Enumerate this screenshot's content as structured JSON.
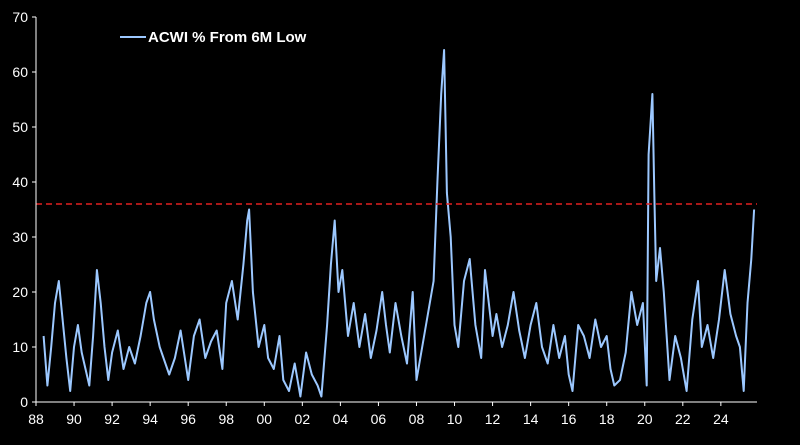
{
  "chart_data": {
    "type": "line",
    "title": "",
    "xlabel": "",
    "ylabel": "",
    "xlim": [
      1988,
      2025.9
    ],
    "ylim": [
      0,
      70
    ],
    "grid": false,
    "legend": {
      "placement": "top-left",
      "entries": [
        "ACWI % From 6M Low"
      ]
    },
    "x_ticks": [
      "88",
      "90",
      "92",
      "94",
      "96",
      "98",
      "00",
      "02",
      "04",
      "06",
      "08",
      "10",
      "12",
      "14",
      "16",
      "18",
      "20",
      "22",
      "24"
    ],
    "y_ticks": [
      "0",
      "10",
      "20",
      "30",
      "40",
      "50",
      "60",
      "70"
    ],
    "reference_line": {
      "y": 36,
      "style": "dashed",
      "color": "#e02020"
    },
    "series": [
      {
        "name": "ACWI % From 6M Low",
        "color": "#9cc8ff",
        "x": [
          1988.4,
          1988.6,
          1988.8,
          1989.0,
          1989.2,
          1989.4,
          1989.6,
          1989.8,
          1990.0,
          1990.2,
          1990.4,
          1990.6,
          1990.8,
          1991.0,
          1991.2,
          1991.4,
          1991.6,
          1991.8,
          1992.0,
          1992.3,
          1992.6,
          1992.9,
          1993.2,
          1993.5,
          1993.8,
          1994.0,
          1994.2,
          1994.5,
          1994.8,
          1995.0,
          1995.3,
          1995.6,
          1996.0,
          1996.3,
          1996.6,
          1996.9,
          1997.2,
          1997.5,
          1997.8,
          1998.0,
          1998.3,
          1998.6,
          1998.9,
          1999.1,
          1999.2,
          1999.4,
          1999.7,
          2000.0,
          2000.2,
          2000.5,
          2000.8,
          2001.0,
          2001.3,
          2001.6,
          2001.9,
          2002.2,
          2002.5,
          2002.8,
          2003.0,
          2003.3,
          2003.5,
          2003.7,
          2003.9,
          2004.1,
          2004.4,
          2004.7,
          2005.0,
          2005.3,
          2005.6,
          2005.9,
          2006.2,
          2006.4,
          2006.6,
          2006.9,
          2007.2,
          2007.5,
          2007.8,
          2008.0,
          2008.3,
          2008.6,
          2008.9,
          2009.1,
          2009.3,
          2009.45,
          2009.6,
          2009.8,
          2010.0,
          2010.2,
          2010.5,
          2010.8,
          2011.1,
          2011.4,
          2011.6,
          2011.8,
          2012.0,
          2012.2,
          2012.5,
          2012.8,
          2013.1,
          2013.4,
          2013.7,
          2014.0,
          2014.3,
          2014.6,
          2014.9,
          2015.2,
          2015.5,
          2015.8,
          2016.0,
          2016.2,
          2016.5,
          2016.8,
          2017.1,
          2017.4,
          2017.7,
          2018.0,
          2018.2,
          2018.4,
          2018.7,
          2019.0,
          2019.3,
          2019.6,
          2019.9,
          2020.1,
          2020.2,
          2020.4,
          2020.5,
          2020.6,
          2020.8,
          2021.0,
          2021.3,
          2021.6,
          2021.9,
          2022.2,
          2022.5,
          2022.8,
          2023.0,
          2023.3,
          2023.6,
          2023.9,
          2024.2,
          2024.5,
          2024.8,
          2025.0,
          2025.2,
          2025.4,
          2025.6,
          2025.75
        ],
        "y": [
          12,
          3,
          10,
          18,
          22,
          15,
          8,
          2,
          10,
          14,
          9,
          6,
          3,
          12,
          24,
          18,
          10,
          4,
          9,
          13,
          6,
          10,
          7,
          12,
          18,
          20,
          15,
          10,
          7,
          5,
          8,
          13,
          4,
          12,
          15,
          8,
          11,
          13,
          6,
          18,
          22,
          15,
          25,
          33,
          35,
          20,
          10,
          14,
          8,
          6,
          12,
          4,
          2,
          7,
          1,
          9,
          5,
          3,
          1,
          14,
          25,
          33,
          20,
          24,
          12,
          18,
          10,
          16,
          8,
          13,
          20,
          14,
          9,
          18,
          12,
          7,
          20,
          4,
          10,
          16,
          22,
          40,
          56,
          64,
          38,
          30,
          14,
          10,
          22,
          26,
          14,
          8,
          24,
          18,
          12,
          16,
          10,
          14,
          20,
          13,
          8,
          14,
          18,
          10,
          7,
          14,
          8,
          12,
          5,
          2,
          14,
          12,
          8,
          15,
          10,
          12,
          6,
          3,
          4,
          9,
          20,
          14,
          18,
          3,
          45,
          56,
          38,
          22,
          28,
          20,
          4,
          12,
          8,
          2,
          15,
          22,
          10,
          14,
          8,
          15,
          24,
          16,
          12,
          10,
          2,
          18,
          26,
          35
        ]
      }
    ]
  }
}
